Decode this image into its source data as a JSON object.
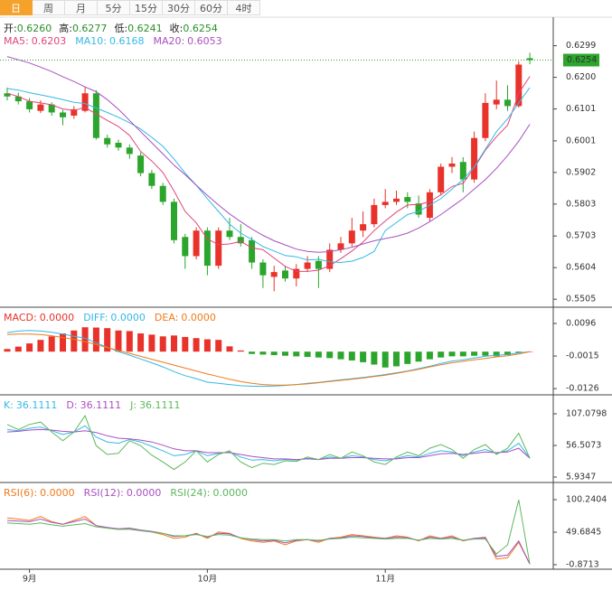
{
  "tabs": {
    "items": [
      "日",
      "周",
      "月",
      "5分",
      "15分",
      "30分",
      "60分",
      "4时"
    ],
    "active": 0
  },
  "chart_data": [
    {
      "type": "candlestick",
      "ohlc_readout": [
        {
          "label": "开:",
          "value": "0.6260"
        },
        {
          "label": "高:",
          "value": "0.6277"
        },
        {
          "label": "低:",
          "value": "0.6241"
        },
        {
          "label": "收:",
          "value": "0.6254"
        }
      ],
      "categories": [
        null,
        null,
        "9月",
        null,
        null,
        null,
        null,
        null,
        null,
        null,
        null,
        null,
        null,
        null,
        null,
        null,
        null,
        null,
        "10月",
        null,
        null,
        null,
        null,
        null,
        null,
        null,
        null,
        null,
        null,
        null,
        null,
        null,
        null,
        null,
        "11月",
        null,
        null,
        null,
        null,
        null,
        null,
        null,
        null,
        null,
        null,
        null,
        null,
        null
      ],
      "open": [
        0.615,
        0.614,
        0.6125,
        0.6095,
        0.6115,
        0.609,
        0.608,
        0.6095,
        0.615,
        0.601,
        0.5995,
        0.598,
        0.5955,
        0.59,
        0.586,
        0.581,
        0.57,
        0.564,
        0.572,
        0.561,
        0.572,
        0.57,
        0.569,
        0.562,
        0.5575,
        0.5595,
        0.557,
        0.56,
        0.5625,
        0.56,
        0.566,
        0.568,
        0.572,
        0.574,
        0.58,
        0.581,
        0.5825,
        0.5805,
        0.576,
        0.584,
        0.592,
        0.5935,
        0.588,
        0.601,
        0.6115,
        0.613,
        0.611,
        0.626
      ],
      "high": [
        0.6168,
        0.6152,
        0.6135,
        0.6128,
        0.6122,
        0.6098,
        0.611,
        0.617,
        0.616,
        0.602,
        0.6005,
        0.599,
        0.5965,
        0.591,
        0.587,
        0.582,
        0.571,
        0.573,
        0.573,
        0.573,
        0.576,
        0.574,
        0.57,
        0.563,
        0.561,
        0.561,
        0.5615,
        0.564,
        0.564,
        0.568,
        0.57,
        0.576,
        0.578,
        0.582,
        0.585,
        0.5845,
        0.584,
        0.583,
        0.585,
        0.593,
        0.595,
        0.595,
        0.603,
        0.615,
        0.619,
        0.6175,
        0.625,
        0.6277
      ],
      "low": [
        0.6128,
        0.6115,
        0.609,
        0.6088,
        0.608,
        0.605,
        0.607,
        0.609,
        0.6005,
        0.598,
        0.597,
        0.5945,
        0.589,
        0.585,
        0.58,
        0.568,
        0.56,
        0.563,
        0.558,
        0.56,
        0.569,
        0.567,
        0.56,
        0.554,
        0.553,
        0.556,
        0.5545,
        0.559,
        0.554,
        0.559,
        0.565,
        0.567,
        0.57,
        0.573,
        0.579,
        0.58,
        0.579,
        0.576,
        0.575,
        0.583,
        0.59,
        0.584,
        0.587,
        0.6,
        0.61,
        0.6095,
        0.6105,
        0.6241
      ],
      "close": [
        0.614,
        0.6125,
        0.61,
        0.6115,
        0.609,
        0.6075,
        0.61,
        0.615,
        0.601,
        0.599,
        0.598,
        0.596,
        0.59,
        0.586,
        0.581,
        0.569,
        0.564,
        0.572,
        0.561,
        0.572,
        0.57,
        0.568,
        0.562,
        0.558,
        0.559,
        0.557,
        0.56,
        0.562,
        0.56,
        0.566,
        0.568,
        0.572,
        0.574,
        0.58,
        0.581,
        0.582,
        0.581,
        0.577,
        0.584,
        0.592,
        0.593,
        0.588,
        0.601,
        0.612,
        0.613,
        0.611,
        0.624,
        0.6254
      ],
      "up_color": "#e8322a",
      "down_color": "#2ba52b",
      "series": [
        {
          "name": "MA5:",
          "readout": "0.6203",
          "color": "#e0457b",
          "values": [
            0.615,
            0.614,
            0.6125,
            0.612,
            0.6114,
            0.6101,
            0.6096,
            0.6106,
            0.6085,
            0.6065,
            0.6046,
            0.6018,
            0.5968,
            0.5938,
            0.5902,
            0.5844,
            0.578,
            0.5744,
            0.5694,
            0.5676,
            0.5678,
            0.5686,
            0.5666,
            0.566,
            0.5634,
            0.5608,
            0.5592,
            0.5592,
            0.5596,
            0.561,
            0.5632,
            0.5656,
            0.5684,
            0.572,
            0.575,
            0.5778,
            0.58,
            0.5802,
            0.581,
            0.5832,
            0.5858,
            0.5868,
            0.5916,
            0.5972,
            0.6014,
            0.605,
            0.615,
            0.6203
          ]
        },
        {
          "name": "MA10:",
          "readout": "0.6168",
          "color": "#35b8e6",
          "values": [
            0.6165,
            0.616,
            0.6152,
            0.6145,
            0.6138,
            0.613,
            0.6122,
            0.6118,
            0.6104,
            0.609,
            0.6075,
            0.6058,
            0.6038,
            0.6012,
            0.5984,
            0.5944,
            0.59,
            0.5862,
            0.582,
            0.578,
            0.574,
            0.5712,
            0.5692,
            0.567,
            0.5656,
            0.5642,
            0.5638,
            0.5628,
            0.563,
            0.5622,
            0.562,
            0.5624,
            0.5636,
            0.5655,
            0.572,
            0.5745,
            0.577,
            0.578,
            0.58,
            0.582,
            0.585,
            0.588,
            0.592,
            0.5975,
            0.603,
            0.607,
            0.612,
            0.6168
          ]
        },
        {
          "name": "MA20:",
          "readout": "0.6053",
          "color": "#a94fc0",
          "values": [
            0.6265,
            0.6255,
            0.6245,
            0.6232,
            0.6218,
            0.6202,
            0.6187,
            0.617,
            0.6155,
            0.613,
            0.61,
            0.6065,
            0.603,
            0.5995,
            0.596,
            0.5925,
            0.5895,
            0.5862,
            0.583,
            0.58,
            0.5772,
            0.5748,
            0.5725,
            0.5705,
            0.5688,
            0.5675,
            0.5662,
            0.5655,
            0.5652,
            0.5654,
            0.566,
            0.5668,
            0.5678,
            0.5688,
            0.5695,
            0.5702,
            0.5712,
            0.5728,
            0.5748,
            0.577,
            0.5795,
            0.582,
            0.585,
            0.588,
            0.5915,
            0.5955,
            0.6,
            0.6053
          ]
        }
      ],
      "current_price": 0.6254,
      "current_color": "#2ba52b",
      "ylim": [
        0.548,
        0.638
      ],
      "yticks": [
        0.6299,
        {
          "value": 0.62,
          "label": "0.6200"
        },
        0.6101,
        0.6001,
        0.5902,
        0.5803,
        0.5703,
        0.5604,
        0.5505
      ]
    },
    {
      "type": "macd",
      "series": [
        {
          "name": "MACD:",
          "readout": "0.0000",
          "style": "bar",
          "color": "#e8322a",
          "negative_color": "#2ba52b",
          "values": [
            0.0009,
            0.0017,
            0.0028,
            0.004,
            0.0052,
            0.0062,
            0.0072,
            0.0083,
            0.0082,
            0.008,
            0.0072,
            0.007,
            0.0062,
            0.0058,
            0.0052,
            0.0055,
            0.005,
            0.0046,
            0.0042,
            0.004,
            0.0018,
            0.0004,
            -0.0008,
            -0.001,
            -0.0012,
            -0.0014,
            -0.0016,
            -0.0018,
            -0.002,
            -0.0022,
            -0.0026,
            -0.003,
            -0.0036,
            -0.0044,
            -0.0054,
            -0.005,
            -0.0042,
            -0.0034,
            -0.0026,
            -0.002,
            -0.0016,
            -0.0016,
            -0.0014,
            -0.0014,
            -0.0016,
            -0.0012,
            -0.0004,
            0
          ]
        },
        {
          "name": "DIFF:",
          "readout": "0.0000",
          "style": "line",
          "color": "#35b8e6",
          "values": [
            0.0065,
            0.007,
            0.0072,
            0.007,
            0.0066,
            0.006,
            0.0052,
            0.0046,
            0.003,
            0.0015,
            0,
            -0.0012,
            -0.0025,
            -0.0038,
            -0.0052,
            -0.0068,
            -0.0082,
            -0.0092,
            -0.0104,
            -0.0108,
            -0.0112,
            -0.0116,
            -0.0118,
            -0.0118,
            -0.0117,
            -0.0115,
            -0.0112,
            -0.0108,
            -0.0105,
            -0.01,
            -0.0096,
            -0.0092,
            -0.0088,
            -0.0083,
            -0.0078,
            -0.0072,
            -0.0066,
            -0.0058,
            -0.005,
            -0.004,
            -0.0032,
            -0.0028,
            -0.0022,
            -0.0016,
            -0.0012,
            -0.001,
            -0.0004,
            0
          ]
        },
        {
          "name": "DEA:",
          "readout": "0.0000",
          "style": "line",
          "color": "#f07a1a",
          "values": [
            0.0058,
            0.006,
            0.006,
            0.0058,
            0.0054,
            0.0048,
            0.0042,
            0.0034,
            0.0024,
            0.0014,
            0.0004,
            -0.0006,
            -0.0016,
            -0.0026,
            -0.0036,
            -0.0046,
            -0.0056,
            -0.0066,
            -0.0076,
            -0.0085,
            -0.0094,
            -0.0102,
            -0.0108,
            -0.0112,
            -0.0114,
            -0.0114,
            -0.0112,
            -0.011,
            -0.0106,
            -0.0102,
            -0.0098,
            -0.0094,
            -0.009,
            -0.0085,
            -0.008,
            -0.0074,
            -0.0067,
            -0.006,
            -0.0052,
            -0.0045,
            -0.0038,
            -0.0033,
            -0.0028,
            -0.0023,
            -0.0018,
            -0.0014,
            -0.0008,
            0
          ]
        }
      ],
      "ylim": [
        -0.0144,
        0.0139
      ],
      "yticks": [
        0.0096,
        -0.0015,
        -0.0126
      ]
    },
    {
      "type": "lines",
      "series": [
        {
          "name": "K:",
          "readout": "36.1111",
          "color": "#35b8e6",
          "values": [
            82,
            80,
            84,
            86,
            80,
            74,
            78,
            88,
            70,
            62,
            60,
            66,
            62,
            55,
            48,
            40,
            42,
            48,
            40,
            44,
            46,
            38,
            33,
            34,
            32,
            34,
            33,
            36,
            34,
            38,
            36,
            40,
            38,
            34,
            32,
            36,
            40,
            38,
            44,
            48,
            46,
            40,
            46,
            50,
            44,
            48,
            60,
            36.1111
          ]
        },
        {
          "name": "D:",
          "readout": "36.1111",
          "color": "#a94fc0",
          "values": [
            78,
            79,
            81,
            82,
            81,
            79,
            78,
            80,
            77,
            72,
            68,
            67,
            65,
            62,
            57,
            51,
            48,
            48,
            45,
            45,
            45,
            42,
            39,
            37,
            35,
            35,
            34,
            35,
            34,
            36,
            36,
            37,
            37,
            36,
            35,
            35,
            37,
            37,
            40,
            43,
            44,
            42,
            44,
            46,
            45,
            46,
            52,
            36.1111
          ]
        },
        {
          "name": "J:",
          "readout": "36.1111",
          "color": "#5cb85c",
          "values": [
            90,
            82,
            90,
            94,
            78,
            64,
            78,
            104,
            56,
            42,
            44,
            64,
            56,
            41,
            30,
            18,
            30,
            48,
            30,
            42,
            48,
            30,
            21,
            28,
            26,
            32,
            31,
            38,
            34,
            42,
            36,
            46,
            40,
            30,
            26,
            38,
            46,
            40,
            52,
            58,
            50,
            36,
            50,
            58,
            42,
            52,
            76,
            36.1111
          ]
        }
      ],
      "ylim": [
        -1.29,
        131.64
      ],
      "yticks": [
        107.0798,
        56.5073,
        5.9347
      ]
    },
    {
      "type": "lines",
      "series": [
        {
          "name": "RSI(6):",
          "readout": "0.0000",
          "color": "#f07a1a",
          "values": [
            72,
            70,
            68,
            74,
            66,
            62,
            68,
            74,
            60,
            56,
            54,
            56,
            52,
            50,
            46,
            40,
            42,
            48,
            40,
            50,
            48,
            40,
            36,
            34,
            36,
            30,
            36,
            38,
            34,
            40,
            42,
            46,
            44,
            42,
            40,
            44,
            42,
            36,
            44,
            40,
            44,
            36,
            40,
            42,
            8,
            10,
            34,
            0
          ]
        },
        {
          "name": "RSI(12):",
          "readout": "0.0000",
          "color": "#a94fc0",
          "values": [
            68,
            67,
            66,
            70,
            65,
            62,
            66,
            70,
            60,
            57,
            55,
            56,
            53,
            51,
            48,
            43,
            44,
            47,
            42,
            48,
            47,
            41,
            38,
            36,
            37,
            33,
            37,
            38,
            36,
            40,
            41,
            44,
            43,
            41,
            40,
            42,
            41,
            37,
            42,
            40,
            42,
            37,
            40,
            41,
            12,
            14,
            36,
            0
          ]
        },
        {
          "name": "RSI(24):",
          "readout": "0.0000",
          "color": "#5cb85c",
          "values": [
            64,
            63,
            62,
            64,
            61,
            59,
            61,
            63,
            58,
            56,
            54,
            54,
            52,
            50,
            48,
            44,
            44,
            46,
            43,
            46,
            45,
            41,
            39,
            38,
            38,
            36,
            38,
            38,
            37,
            39,
            40,
            42,
            41,
            40,
            39,
            40,
            40,
            37,
            40,
            39,
            40,
            37,
            39,
            39,
            16,
            30,
            100,
            0
          ]
        }
      ],
      "ylim": [
        -7.89,
        121.3
      ],
      "yticks": [
        100.2404,
        49.6845,
        -0.8713
      ]
    }
  ]
}
